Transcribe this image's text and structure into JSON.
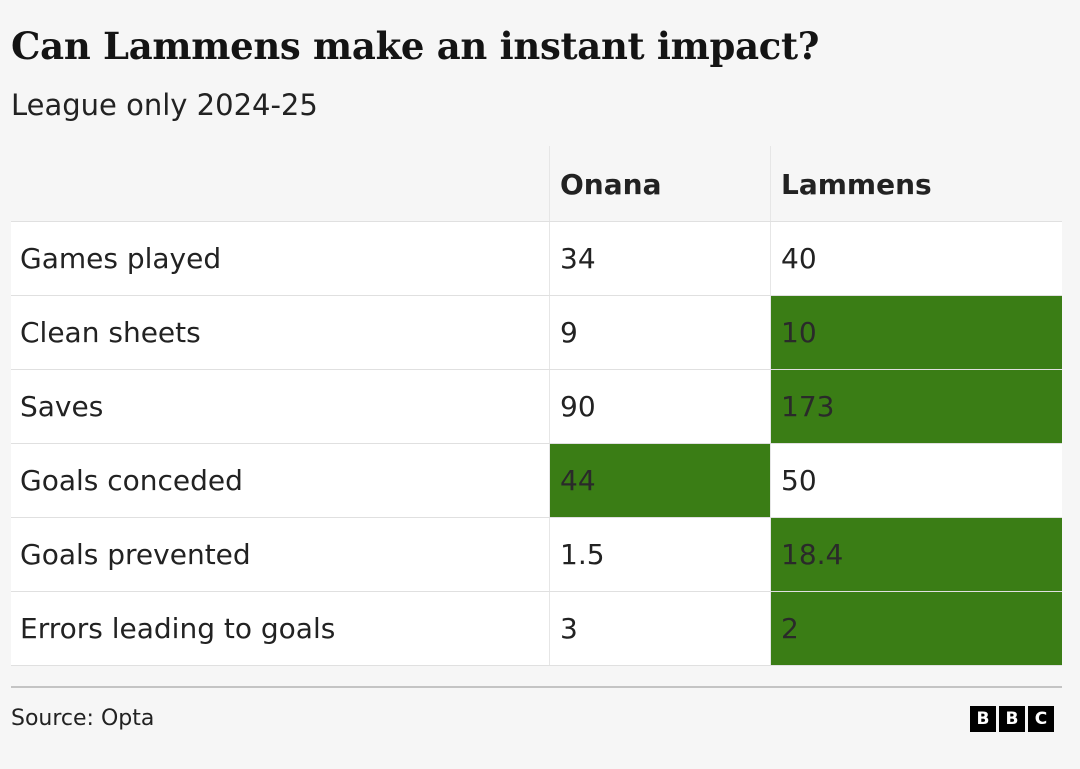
{
  "title": "Can Lammens make an instant impact?",
  "subtitle": "League only 2024-25",
  "highlight_color": "#3a7d15",
  "chart_data": {
    "type": "table",
    "title": "Can Lammens make an instant impact?",
    "subtitle": "League only 2024-25",
    "columns": [
      "",
      "Onana",
      "Lammens"
    ],
    "rows": [
      {
        "metric": "Games played",
        "onana": "34",
        "lammens": "40",
        "highlight": ""
      },
      {
        "metric": "Clean sheets",
        "onana": "9",
        "lammens": "10",
        "highlight": "lammens"
      },
      {
        "metric": "Saves",
        "onana": "90",
        "lammens": "173",
        "highlight": "lammens"
      },
      {
        "metric": "Goals conceded",
        "onana": "44",
        "lammens": "50",
        "highlight": "onana"
      },
      {
        "metric": "Goals prevented",
        "onana": "1.5",
        "lammens": "18.4",
        "highlight": "lammens"
      },
      {
        "metric": "Errors leading to goals",
        "onana": "3",
        "lammens": "2",
        "highlight": "lammens"
      }
    ]
  },
  "footer": {
    "source": "Source: Opta",
    "logo_letters": [
      "B",
      "B",
      "C"
    ]
  }
}
